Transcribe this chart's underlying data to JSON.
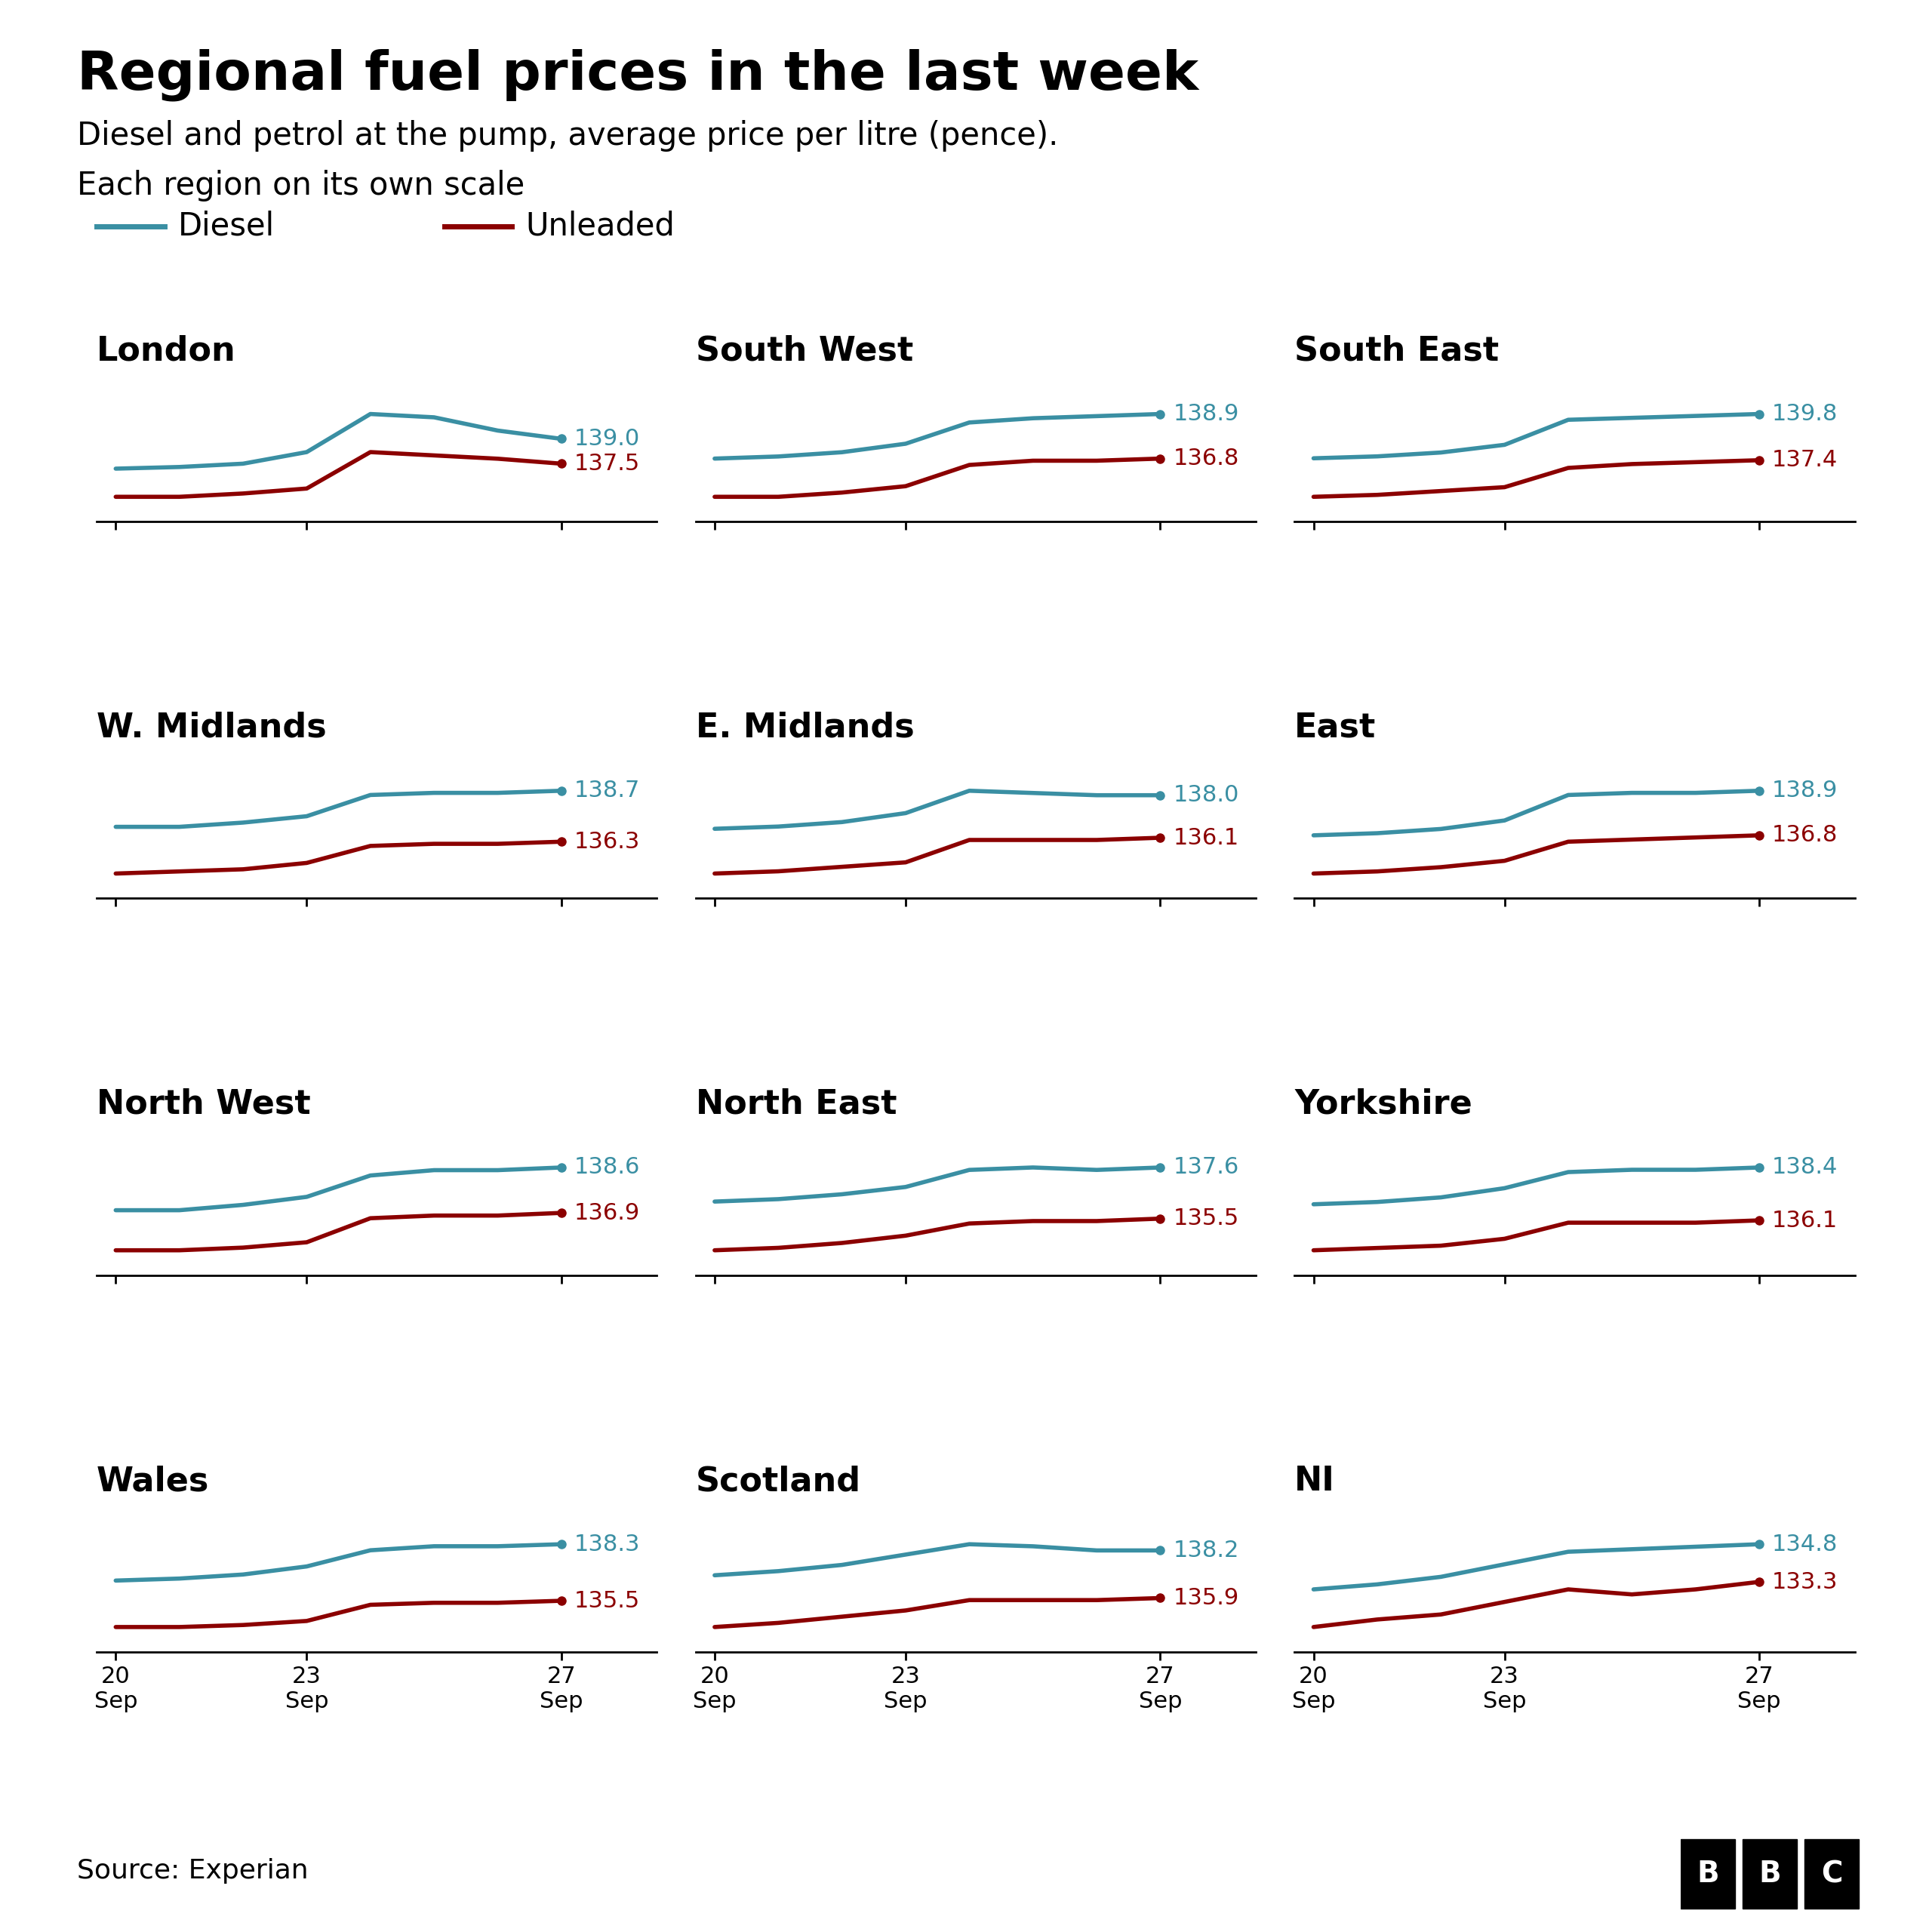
{
  "title": "Regional fuel prices in the last week",
  "subtitle1": "Diesel and petrol at the pump, average price per litre (pence).",
  "subtitle2": "Each region on its own scale",
  "diesel_color": "#3a8fa3",
  "unleaded_color": "#8b0000",
  "background_color": "#ffffff",
  "x_days": [
    20,
    21,
    22,
    23,
    24,
    25,
    26,
    27
  ],
  "x_ticks": [
    20,
    23,
    27
  ],
  "x_tick_labels": [
    "20\nSep",
    "23\nSep",
    "27\nSep"
  ],
  "regions": [
    {
      "name": "London",
      "diesel": [
        137.2,
        137.3,
        137.5,
        138.2,
        140.5,
        140.3,
        139.5,
        139.0
      ],
      "unleaded": [
        135.5,
        135.5,
        135.7,
        136.0,
        138.2,
        138.0,
        137.8,
        137.5
      ],
      "diesel_final": 139.0,
      "unleaded_final": 137.5
    },
    {
      "name": "South West",
      "diesel": [
        136.8,
        136.9,
        137.1,
        137.5,
        138.5,
        138.7,
        138.8,
        138.9
      ],
      "unleaded": [
        135.0,
        135.0,
        135.2,
        135.5,
        136.5,
        136.7,
        136.7,
        136.8
      ],
      "diesel_final": 138.9,
      "unleaded_final": 136.8
    },
    {
      "name": "South East",
      "diesel": [
        137.5,
        137.6,
        137.8,
        138.2,
        139.5,
        139.6,
        139.7,
        139.8
      ],
      "unleaded": [
        135.5,
        135.6,
        135.8,
        136.0,
        137.0,
        137.2,
        137.3,
        137.4
      ],
      "diesel_final": 139.8,
      "unleaded_final": 137.4
    },
    {
      "name": "W. Midlands",
      "diesel": [
        137.0,
        137.0,
        137.2,
        137.5,
        138.5,
        138.6,
        138.6,
        138.7
      ],
      "unleaded": [
        134.8,
        134.9,
        135.0,
        135.3,
        136.1,
        136.2,
        136.2,
        136.3
      ],
      "diesel_final": 138.7,
      "unleaded_final": 136.3
    },
    {
      "name": "E. Midlands",
      "diesel": [
        136.5,
        136.6,
        136.8,
        137.2,
        138.2,
        138.1,
        138.0,
        138.0
      ],
      "unleaded": [
        134.5,
        134.6,
        134.8,
        135.0,
        136.0,
        136.0,
        136.0,
        136.1
      ],
      "diesel_final": 138.0,
      "unleaded_final": 136.1
    },
    {
      "name": "East",
      "diesel": [
        136.8,
        136.9,
        137.1,
        137.5,
        138.7,
        138.8,
        138.8,
        138.9
      ],
      "unleaded": [
        135.0,
        135.1,
        135.3,
        135.6,
        136.5,
        136.6,
        136.7,
        136.8
      ],
      "diesel_final": 138.9,
      "unleaded_final": 136.8
    },
    {
      "name": "North West",
      "diesel": [
        137.0,
        137.0,
        137.2,
        137.5,
        138.3,
        138.5,
        138.5,
        138.6
      ],
      "unleaded": [
        135.5,
        135.5,
        135.6,
        135.8,
        136.7,
        136.8,
        136.8,
        136.9
      ],
      "diesel_final": 138.6,
      "unleaded_final": 136.9
    },
    {
      "name": "North East",
      "diesel": [
        136.2,
        136.3,
        136.5,
        136.8,
        137.5,
        137.6,
        137.5,
        137.6
      ],
      "unleaded": [
        134.2,
        134.3,
        134.5,
        134.8,
        135.3,
        135.4,
        135.4,
        135.5
      ],
      "diesel_final": 137.6,
      "unleaded_final": 135.5
    },
    {
      "name": "Yorkshire",
      "diesel": [
        136.8,
        136.9,
        137.1,
        137.5,
        138.2,
        138.3,
        138.3,
        138.4
      ],
      "unleaded": [
        134.8,
        134.9,
        135.0,
        135.3,
        136.0,
        136.0,
        136.0,
        136.1
      ],
      "diesel_final": 138.4,
      "unleaded_final": 136.1
    },
    {
      "name": "Wales",
      "diesel": [
        136.5,
        136.6,
        136.8,
        137.2,
        138.0,
        138.2,
        138.2,
        138.3
      ],
      "unleaded": [
        134.2,
        134.2,
        134.3,
        134.5,
        135.3,
        135.4,
        135.4,
        135.5
      ],
      "diesel_final": 138.3,
      "unleaded_final": 135.5
    },
    {
      "name": "Scotland",
      "diesel": [
        137.0,
        137.2,
        137.5,
        138.0,
        138.5,
        138.4,
        138.2,
        138.2
      ],
      "unleaded": [
        134.5,
        134.7,
        135.0,
        135.3,
        135.8,
        135.8,
        135.8,
        135.9
      ],
      "diesel_final": 138.2,
      "unleaded_final": 135.9
    },
    {
      "name": "NI",
      "diesel": [
        133.0,
        133.2,
        133.5,
        134.0,
        134.5,
        134.6,
        134.7,
        134.8
      ],
      "unleaded": [
        131.5,
        131.8,
        132.0,
        132.5,
        133.0,
        132.8,
        133.0,
        133.3
      ],
      "diesel_final": 134.8,
      "unleaded_final": 133.3
    }
  ],
  "source_text": "Source: Experian"
}
